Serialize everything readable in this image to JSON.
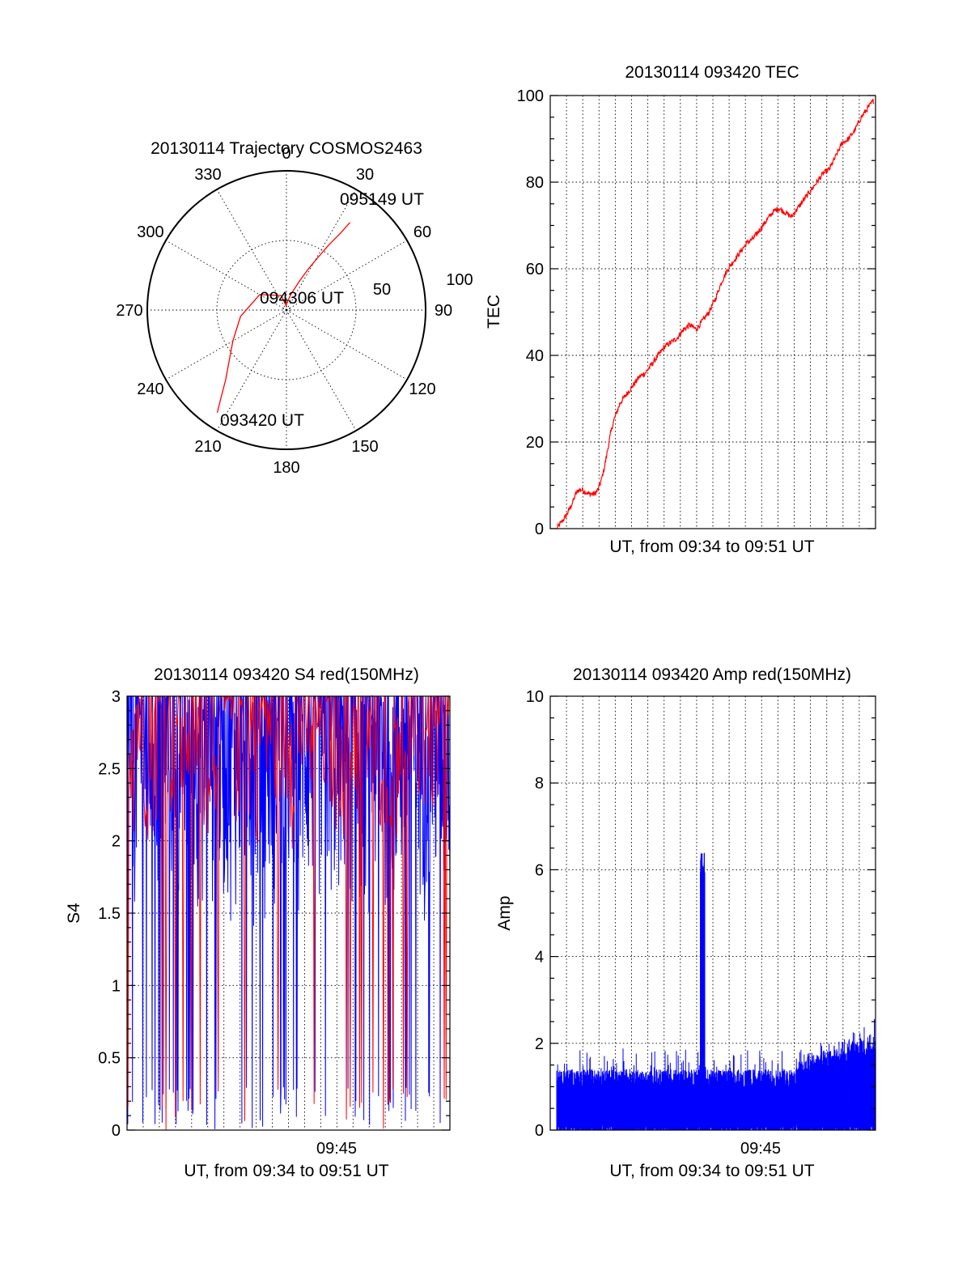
{
  "colors": {
    "red": "#ff0000",
    "blue": "#0000ff",
    "ink": "#000000"
  },
  "chart_data": [
    {
      "type": "polar",
      "title": "20130114 Trajectory COSMOS2463",
      "angle_labels": [
        "0",
        "30",
        "60",
        "90",
        "120",
        "150",
        "180",
        "210",
        "240",
        "270",
        "300",
        "330"
      ],
      "radial_labels": [
        "50",
        "100"
      ],
      "rlim": [
        0,
        100
      ],
      "grid": true,
      "series": [
        {
          "color": "red",
          "points": [
            {
              "az": 214,
              "el": 10
            },
            {
              "az": 217,
              "el": 20
            },
            {
              "az": 221,
              "el": 30
            },
            {
              "az": 228,
              "el": 40
            },
            {
              "az": 240,
              "el": 50
            },
            {
              "az": 262,
              "el": 60
            },
            {
              "az": 300,
              "el": 70
            },
            {
              "az": 340,
              "el": 80
            },
            {
              "az": 355,
              "el": 87
            },
            {
              "az": 15,
              "el": 80
            },
            {
              "az": 24,
              "el": 70
            },
            {
              "az": 28,
              "el": 60
            },
            {
              "az": 31,
              "el": 50
            },
            {
              "az": 33,
              "el": 40
            },
            {
              "az": 35,
              "el": 30
            },
            {
              "az": 36,
              "el": 20
            }
          ]
        }
      ],
      "annotations": [
        "093420 UT",
        "094306 UT",
        "095149 UT"
      ]
    },
    {
      "type": "line",
      "title": "20130114 093420 TEC",
      "xlabel": "UT, from 09:34 to 09:51 UT",
      "ylabel": "TEC",
      "ylim": [
        0,
        100
      ],
      "yticks": [
        "0",
        "20",
        "40",
        "60",
        "80",
        "100"
      ],
      "xlim": [
        0,
        1
      ],
      "grid": true,
      "series": [
        {
          "color": "red",
          "x": [
            0,
            0.01,
            0.03,
            0.05,
            0.06,
            0.07,
            0.08,
            0.1,
            0.12,
            0.13,
            0.14,
            0.15,
            0.16,
            0.17,
            0.18,
            0.19,
            0.2,
            0.22,
            0.24,
            0.26,
            0.28,
            0.3,
            0.32,
            0.34,
            0.36,
            0.38,
            0.4,
            0.42,
            0.44,
            0.46,
            0.48,
            0.5,
            0.52,
            0.54,
            0.56,
            0.58,
            0.6,
            0.62,
            0.64,
            0.66,
            0.68,
            0.7,
            0.72,
            0.74,
            0.76,
            0.78,
            0.8,
            0.82,
            0.84,
            0.86,
            0.88,
            0.9,
            0.92,
            0.94,
            0.96,
            0.98,
            1.0
          ],
          "y": [
            0,
            1,
            3,
            6,
            8,
            9,
            9,
            8,
            8,
            9,
            11,
            14,
            18,
            22,
            25,
            27,
            29,
            31,
            33,
            35,
            36,
            38,
            40,
            42,
            43,
            44,
            46,
            47,
            46,
            48,
            50,
            53,
            57,
            60,
            62,
            64,
            66,
            67,
            69,
            71,
            73,
            74,
            73,
            72,
            74,
            76,
            78,
            80,
            82,
            83,
            86,
            89,
            90,
            92,
            95,
            97,
            99
          ]
        }
      ]
    },
    {
      "type": "line",
      "title": "20130114 093420 S4 red(150MHz)",
      "xlabel": "UT, from 09:34 to 09:51 UT",
      "ylabel": "S4",
      "ylim": [
        0,
        3
      ],
      "yticks": [
        "0",
        "0.5",
        "1",
        "1.5",
        "2",
        "2.5",
        "3"
      ],
      "xticks": [
        "09:45"
      ],
      "grid": true,
      "series": [
        {
          "color": "blue",
          "description_values": "dense noisy trace, mostly 1.5–3, with frequent dropouts to 0"
        },
        {
          "color": "red",
          "description_values": "dense noisy trace, mostly 2–3, with spikes down to 0"
        }
      ]
    },
    {
      "type": "line",
      "title": "20130114 093420 Amp red(150MHz)",
      "xlabel": "UT, from 09:34 to 09:51 UT",
      "ylabel": "Amp",
      "ylim": [
        0,
        10
      ],
      "yticks": [
        "0",
        "2",
        "4",
        "6",
        "8",
        "10"
      ],
      "xticks": [
        "09:45"
      ],
      "grid": true,
      "series": [
        {
          "color": "blue",
          "description_values": "noise floor ~0.6–1.8, spike to ~6.4 near 09:43, rising to ~1.8–3.3 at end"
        }
      ]
    }
  ]
}
